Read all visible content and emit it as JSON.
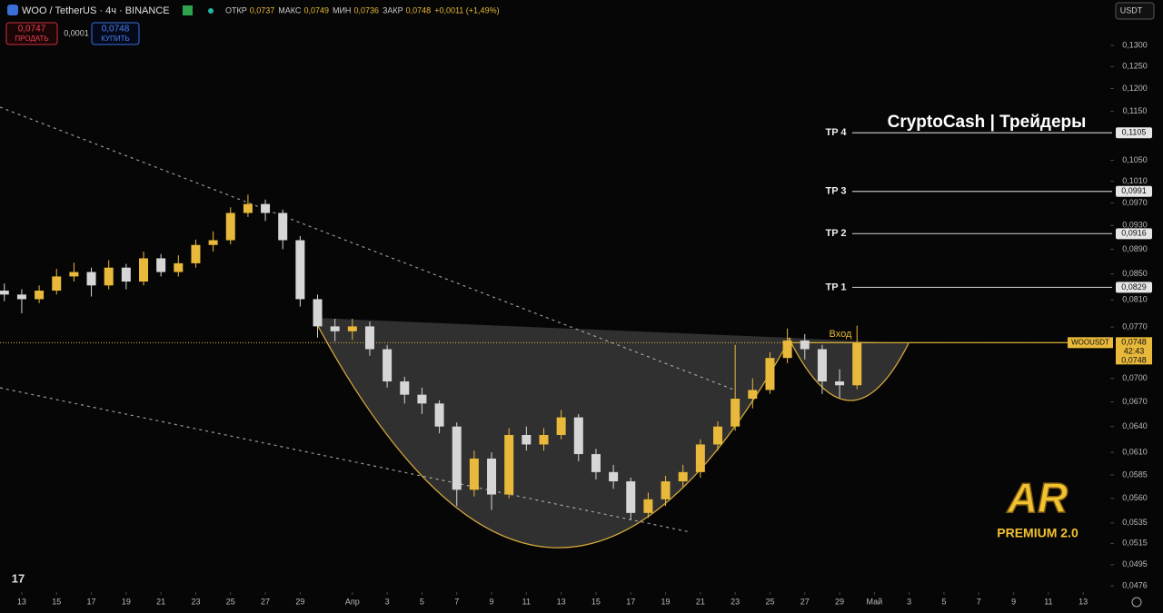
{
  "header": {
    "symbol": "WOO / TetherUS · 4ч · BINANCE",
    "ohlc": [
      {
        "label": "ОТКР",
        "value": "0,0737"
      },
      {
        "label": "МАКС",
        "value": "0,0749"
      },
      {
        "label": "МИН",
        "value": "0,0736"
      },
      {
        "label": "ЗАКР",
        "value": "0,0748"
      }
    ],
    "change": "+0,0011 (+1,49%)",
    "sell": {
      "price": "0,0747",
      "label": "ПРОДАТЬ"
    },
    "spread": "0,0001",
    "buy": {
      "price": "0,0748",
      "label": "КУПИТЬ"
    },
    "currency": "USDT"
  },
  "chart_data": {
    "type": "candlestick",
    "title": "CryptoCash | Трейдеры",
    "log_scale": true,
    "up_color": "#e8b93a",
    "down_color": "#d6d6d6",
    "x": [
      -1,
      0,
      1,
      2,
      3,
      4,
      5,
      6,
      7,
      8,
      9,
      10,
      11,
      12,
      13,
      14,
      15,
      16,
      17,
      18,
      19,
      20,
      21,
      22,
      23,
      24,
      25,
      26,
      27,
      28,
      29,
      30,
      31,
      32,
      33,
      34,
      35,
      36,
      37,
      38,
      39,
      40,
      41,
      42,
      43,
      44,
      45,
      46,
      47,
      48
    ],
    "open": [
      0.0824,
      0.0818,
      0.0811,
      0.0824,
      0.0846,
      0.0853,
      0.0832,
      0.086,
      0.0838,
      0.0875,
      0.0853,
      0.0867,
      0.0897,
      0.0905,
      0.0952,
      0.0968,
      0.0952,
      0.0905,
      0.0811,
      0.0771,
      0.0764,
      0.0771,
      0.0739,
      0.0696,
      0.0679,
      0.0668,
      0.064,
      0.0569,
      0.0603,
      0.0564,
      0.063,
      0.0619,
      0.063,
      0.0651,
      0.0608,
      0.0588,
      0.0578,
      0.0545,
      0.0559,
      0.0578,
      0.0588,
      0.0619,
      0.064,
      0.0674,
      0.0685,
      0.0727,
      0.0751,
      0.0739,
      0.0696,
      0.0691
    ],
    "high": [
      0.0835,
      0.0826,
      0.0832,
      0.0858,
      0.0868,
      0.086,
      0.0872,
      0.0866,
      0.0886,
      0.0882,
      0.088,
      0.0906,
      0.092,
      0.0962,
      0.0985,
      0.0976,
      0.0958,
      0.0912,
      0.0818,
      0.0782,
      0.0782,
      0.0778,
      0.0745,
      0.0702,
      0.0688,
      0.0672,
      0.0645,
      0.0612,
      0.061,
      0.0638,
      0.064,
      0.0638,
      0.066,
      0.0655,
      0.0614,
      0.0596,
      0.0582,
      0.0566,
      0.0584,
      0.0596,
      0.0625,
      0.0646,
      0.0745,
      0.07,
      0.0735,
      0.0768,
      0.076,
      0.0745,
      0.0712,
      0.0772
    ],
    "low": [
      0.0808,
      0.079,
      0.0805,
      0.0818,
      0.0838,
      0.0815,
      0.0826,
      0.0826,
      0.0832,
      0.0846,
      0.0846,
      0.086,
      0.0886,
      0.0898,
      0.0945,
      0.0938,
      0.089,
      0.08,
      0.0755,
      0.075,
      0.0752,
      0.073,
      0.0688,
      0.0668,
      0.0655,
      0.0632,
      0.0552,
      0.0562,
      0.0548,
      0.056,
      0.0612,
      0.0612,
      0.0625,
      0.06,
      0.058,
      0.057,
      0.0538,
      0.054,
      0.0552,
      0.0572,
      0.0582,
      0.0612,
      0.0635,
      0.0662,
      0.068,
      0.072,
      0.0725,
      0.068,
      0.0675,
      0.0686
    ],
    "close": [
      0.0818,
      0.0811,
      0.0824,
      0.0846,
      0.0853,
      0.0832,
      0.086,
      0.0838,
      0.0875,
      0.0853,
      0.0867,
      0.0897,
      0.0905,
      0.0952,
      0.0968,
      0.0952,
      0.0905,
      0.0811,
      0.0771,
      0.0764,
      0.0771,
      0.0739,
      0.0696,
      0.0679,
      0.0668,
      0.064,
      0.0569,
      0.0603,
      0.0564,
      0.063,
      0.0619,
      0.063,
      0.0651,
      0.0608,
      0.0588,
      0.0578,
      0.0545,
      0.0559,
      0.0578,
      0.0588,
      0.0619,
      0.064,
      0.0674,
      0.0685,
      0.0727,
      0.0751,
      0.0739,
      0.0696,
      0.0691,
      0.0748
    ],
    "xlim": [
      -1.25,
      62.4
    ],
    "xticks": [
      {
        "value": 0,
        "label": "13"
      },
      {
        "value": 2,
        "label": "15"
      },
      {
        "value": 4,
        "label": "17"
      },
      {
        "value": 6,
        "label": "19"
      },
      {
        "value": 8,
        "label": "21"
      },
      {
        "value": 10,
        "label": "23"
      },
      {
        "value": 12,
        "label": "25"
      },
      {
        "value": 14,
        "label": "27"
      },
      {
        "value": 16,
        "label": "29"
      },
      {
        "value": 19,
        "label": "Апр"
      },
      {
        "value": 21,
        "label": "3"
      },
      {
        "value": 23,
        "label": "5"
      },
      {
        "value": 25,
        "label": "7"
      },
      {
        "value": 27,
        "label": "9"
      },
      {
        "value": 29,
        "label": "11"
      },
      {
        "value": 31,
        "label": "13"
      },
      {
        "value": 33,
        "label": "15"
      },
      {
        "value": 35,
        "label": "17"
      },
      {
        "value": 37,
        "label": "19"
      },
      {
        "value": 39,
        "label": "21"
      },
      {
        "value": 41,
        "label": "23"
      },
      {
        "value": 43,
        "label": "25"
      },
      {
        "value": 45,
        "label": "27"
      },
      {
        "value": 47,
        "label": "29"
      },
      {
        "value": 49,
        "label": "Май"
      },
      {
        "value": 51,
        "label": "3"
      },
      {
        "value": 53,
        "label": "5"
      },
      {
        "value": 55,
        "label": "7"
      },
      {
        "value": 57,
        "label": "9"
      },
      {
        "value": 59,
        "label": "11"
      },
      {
        "value": 61,
        "label": "13"
      }
    ],
    "ylim": [
      0.0476,
      0.13
    ],
    "yticks": [
      {
        "value": 0.13,
        "label": "0,1300"
      },
      {
        "value": 0.125,
        "label": "0,1250"
      },
      {
        "value": 0.12,
        "label": "0,1200"
      },
      {
        "value": 0.115,
        "label": "0,1150"
      },
      {
        "value": 0.105,
        "label": "0,1050"
      },
      {
        "value": 0.101,
        "label": "0,1010"
      },
      {
        "value": 0.097,
        "label": "0,0970"
      },
      {
        "value": 0.093,
        "label": "0,0930"
      },
      {
        "value": 0.089,
        "label": "0,0890"
      },
      {
        "value": 0.085,
        "label": "0,0850"
      },
      {
        "value": 0.081,
        "label": "0,0810"
      },
      {
        "value": 0.077,
        "label": "0,0770"
      },
      {
        "value": 0.07,
        "label": "0,0700"
      },
      {
        "value": 0.067,
        "label": "0,0670"
      },
      {
        "value": 0.064,
        "label": "0,0640"
      },
      {
        "value": 0.061,
        "label": "0,0610"
      },
      {
        "value": 0.0585,
        "label": "0,0585"
      },
      {
        "value": 0.056,
        "label": "0,0560"
      },
      {
        "value": 0.0535,
        "label": "0,0535"
      },
      {
        "value": 0.0515,
        "label": "0,0515"
      },
      {
        "value": 0.0495,
        "label": "0,0495"
      },
      {
        "value": 0.0476,
        "label": "0,0476"
      }
    ],
    "levels": [
      {
        "name": "TP 4",
        "price": {
          "value": 0.1105,
          "label": "0,1105"
        }
      },
      {
        "name": "TP 3",
        "price": {
          "value": 0.0991,
          "label": "0,0991"
        }
      },
      {
        "name": "TP 2",
        "price": {
          "value": 0.0916,
          "label": "0,0916"
        }
      },
      {
        "name": "TP 1",
        "price": {
          "value": 0.0829,
          "label": "0,0829"
        }
      }
    ],
    "entry": {
      "name": "Вход"
    },
    "last_price": {
      "symbol": "WOOUSDT",
      "price": {
        "value": 0.0748,
        "label": "0,0748"
      },
      "countdown": "42:43"
    },
    "logo": {
      "mark": "AR",
      "text": "PREMIUM 2.0"
    }
  }
}
